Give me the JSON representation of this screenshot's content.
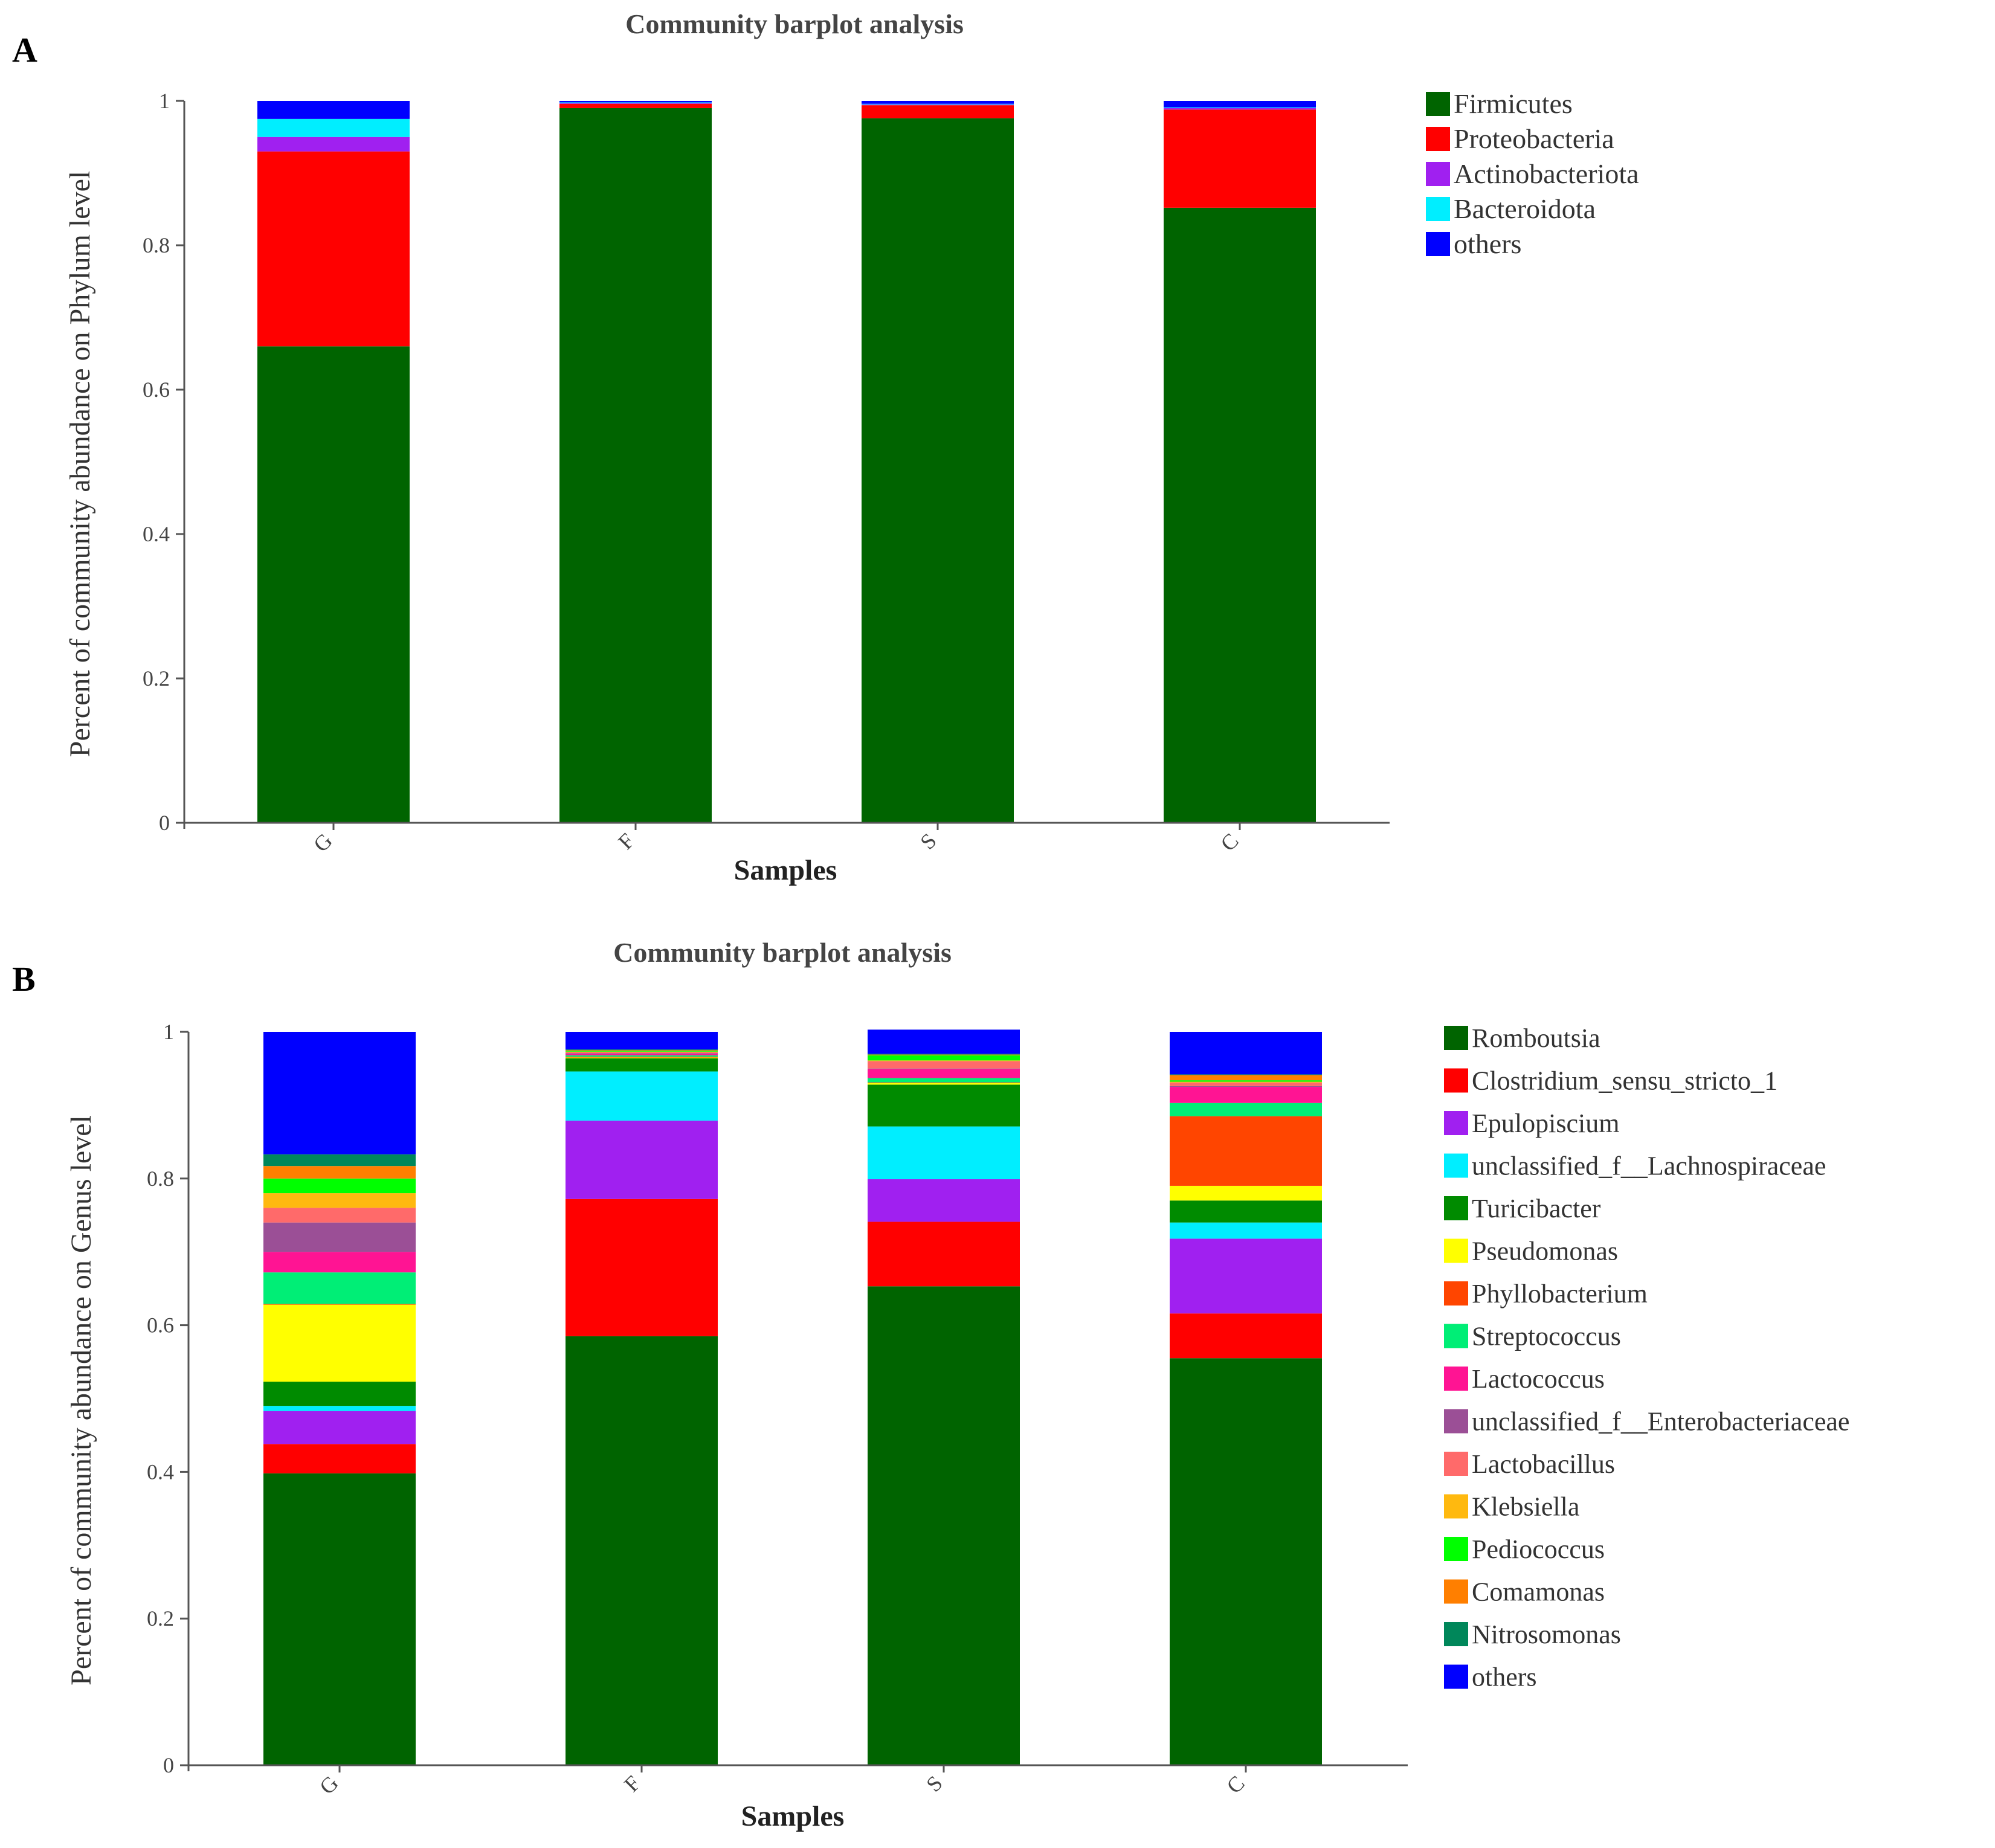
{
  "chart_data": [
    {
      "panel_label": "A",
      "type": "bar",
      "stacked": true,
      "title": "Community barplot analysis",
      "xlabel": "Samples",
      "ylabel": "Percent of community abundance on Phylum level",
      "ylim": [
        0,
        1
      ],
      "yticks": [
        "0",
        "0.2",
        "0.4",
        "0.6",
        "0.8",
        "1"
      ],
      "categories": [
        "G",
        "F",
        "S",
        "C"
      ],
      "legend_position": "right",
      "series": [
        {
          "name": "Firmicutes",
          "color": "#006400",
          "values": [
            0.66,
            0.99,
            0.976,
            0.852
          ]
        },
        {
          "name": "Proteobacteria",
          "color": "#ff0000",
          "values": [
            0.27,
            0.006,
            0.018,
            0.136
          ]
        },
        {
          "name": "Actinobacteriota",
          "color": "#a020f0",
          "values": [
            0.02,
            0.001,
            0.001,
            0.002
          ]
        },
        {
          "name": "Bacteroidota",
          "color": "#00eeff",
          "values": [
            0.025,
            0.001,
            0.001,
            0.001
          ]
        },
        {
          "name": "others",
          "color": "#0000ff",
          "values": [
            0.025,
            0.002,
            0.004,
            0.009
          ]
        }
      ]
    },
    {
      "panel_label": "B",
      "type": "bar",
      "stacked": true,
      "title": "Community barplot analysis",
      "xlabel": "Samples",
      "ylabel": "Percent of community abundance on Genus level",
      "ylim": [
        0,
        1
      ],
      "yticks": [
        "0",
        "0.2",
        "0.4",
        "0.6",
        "0.8",
        "1"
      ],
      "categories": [
        "G",
        "F",
        "S",
        "C"
      ],
      "legend_position": "right",
      "series": [
        {
          "name": "Romboutsia",
          "color": "#006400",
          "values": [
            0.398,
            0.585,
            0.653,
            0.555
          ]
        },
        {
          "name": "Clostridium_sensu_stricto_1",
          "color": "#ff0000",
          "values": [
            0.04,
            0.187,
            0.088,
            0.061
          ]
        },
        {
          "name": "Epulopiscium",
          "color": "#a020f0",
          "values": [
            0.045,
            0.107,
            0.058,
            0.102
          ]
        },
        {
          "name": "unclassified_f__Lachnospiraceae",
          "color": "#00eeff",
          "values": [
            0.007,
            0.067,
            0.072,
            0.022
          ]
        },
        {
          "name": "Turicibacter",
          "color": "#008b00",
          "values": [
            0.033,
            0.018,
            0.057,
            0.03
          ]
        },
        {
          "name": "Pseudomonas",
          "color": "#ffff00",
          "values": [
            0.105,
            0.001,
            0.002,
            0.02
          ]
        },
        {
          "name": "Phyllobacterium",
          "color": "#ff4500",
          "values": [
            0.001,
            0.001,
            0.001,
            0.095
          ]
        },
        {
          "name": "Streptococcus",
          "color": "#00ee76",
          "values": [
            0.043,
            0.002,
            0.006,
            0.018
          ]
        },
        {
          "name": "Lactococcus",
          "color": "#ff1493",
          "values": [
            0.028,
            0.002,
            0.012,
            0.022
          ]
        },
        {
          "name": "unclassified_f__Enterobacteriaceae",
          "color": "#9b4f96",
          "values": [
            0.04,
            0.001,
            0.001,
            0.001
          ]
        },
        {
          "name": "Lactobacillus",
          "color": "#ff6a6a",
          "values": [
            0.02,
            0.001,
            0.01,
            0.005
          ]
        },
        {
          "name": "Klebsiella",
          "color": "#ffb90f",
          "values": [
            0.02,
            0.001,
            0.001,
            0.001
          ]
        },
        {
          "name": "Pediococcus",
          "color": "#00ff00",
          "values": [
            0.02,
            0.001,
            0.007,
            0.002
          ]
        },
        {
          "name": "Comamonas",
          "color": "#ff7f00",
          "values": [
            0.017,
            0.001,
            0.001,
            0.007
          ]
        },
        {
          "name": "Nitrosomonas",
          "color": "#00875a",
          "values": [
            0.016,
            0.001,
            0.001,
            0.001
          ]
        },
        {
          "name": "others",
          "color": "#0000ff",
          "values": [
            0.167,
            0.024,
            0.033,
            0.058
          ]
        }
      ]
    }
  ]
}
